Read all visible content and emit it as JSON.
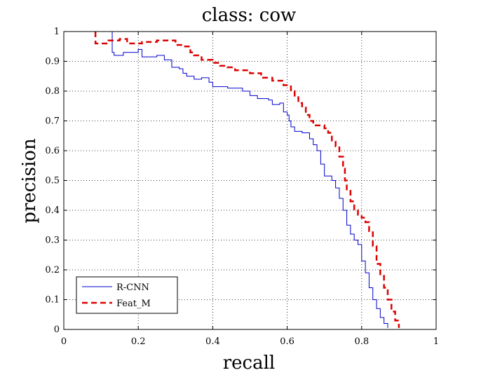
{
  "chart_data": {
    "type": "line",
    "title": "class: cow",
    "xlabel": "recall",
    "ylabel": "precision",
    "xlim": [
      0,
      1
    ],
    "ylim": [
      0,
      1
    ],
    "x_ticks": [
      0,
      0.2,
      0.4,
      0.6,
      0.8,
      1
    ],
    "y_ticks": [
      0,
      0.1,
      0.2,
      0.3,
      0.4,
      0.5,
      0.6,
      0.7,
      0.8,
      0.9,
      1
    ],
    "x_tick_labels": [
      "0",
      "0.2",
      "0.4",
      "0.6",
      "0.8",
      "1"
    ],
    "y_tick_labels": [
      "0",
      "0.1",
      "0.2",
      "0.3",
      "0.4",
      "0.5",
      "0.6",
      "0.7",
      "0.8",
      "0.9",
      "1"
    ],
    "grid": true,
    "legend_position": "bottom-left",
    "series": [
      {
        "name": "R-CNN",
        "color": "#0000cc",
        "style": "solid",
        "points": [
          [
            0.125,
            1.0
          ],
          [
            0.13,
            0.93
          ],
          [
            0.135,
            0.92
          ],
          [
            0.16,
            0.93
          ],
          [
            0.2,
            0.94
          ],
          [
            0.21,
            0.915
          ],
          [
            0.25,
            0.92
          ],
          [
            0.27,
            0.905
          ],
          [
            0.29,
            0.88
          ],
          [
            0.31,
            0.875
          ],
          [
            0.32,
            0.86
          ],
          [
            0.33,
            0.85
          ],
          [
            0.35,
            0.84
          ],
          [
            0.37,
            0.845
          ],
          [
            0.39,
            0.83
          ],
          [
            0.4,
            0.815
          ],
          [
            0.42,
            0.815
          ],
          [
            0.44,
            0.81
          ],
          [
            0.47,
            0.81
          ],
          [
            0.48,
            0.8
          ],
          [
            0.5,
            0.785
          ],
          [
            0.52,
            0.775
          ],
          [
            0.55,
            0.77
          ],
          [
            0.56,
            0.755
          ],
          [
            0.58,
            0.76
          ],
          [
            0.59,
            0.73
          ],
          [
            0.6,
            0.72
          ],
          [
            0.605,
            0.7
          ],
          [
            0.61,
            0.68
          ],
          [
            0.62,
            0.665
          ],
          [
            0.64,
            0.66
          ],
          [
            0.66,
            0.64
          ],
          [
            0.67,
            0.62
          ],
          [
            0.68,
            0.6
          ],
          [
            0.69,
            0.555
          ],
          [
            0.7,
            0.515
          ],
          [
            0.72,
            0.5
          ],
          [
            0.73,
            0.475
          ],
          [
            0.74,
            0.44
          ],
          [
            0.75,
            0.4
          ],
          [
            0.76,
            0.35
          ],
          [
            0.77,
            0.32
          ],
          [
            0.78,
            0.3
          ],
          [
            0.79,
            0.285
          ],
          [
            0.8,
            0.23
          ],
          [
            0.81,
            0.19
          ],
          [
            0.82,
            0.14
          ],
          [
            0.83,
            0.1
          ],
          [
            0.84,
            0.07
          ],
          [
            0.85,
            0.04
          ],
          [
            0.86,
            0.02
          ],
          [
            0.87,
            0.005
          ]
        ]
      },
      {
        "name": "Feat_M",
        "color": "#dd0000",
        "style": "dashed",
        "points": [
          [
            0.085,
            1.0
          ],
          [
            0.085,
            0.96
          ],
          [
            0.12,
            0.97
          ],
          [
            0.15,
            0.975
          ],
          [
            0.17,
            0.96
          ],
          [
            0.21,
            0.965
          ],
          [
            0.25,
            0.97
          ],
          [
            0.28,
            0.97
          ],
          [
            0.3,
            0.955
          ],
          [
            0.32,
            0.95
          ],
          [
            0.34,
            0.93
          ],
          [
            0.35,
            0.92
          ],
          [
            0.37,
            0.905
          ],
          [
            0.4,
            0.895
          ],
          [
            0.42,
            0.885
          ],
          [
            0.44,
            0.88
          ],
          [
            0.46,
            0.87
          ],
          [
            0.5,
            0.86
          ],
          [
            0.53,
            0.845
          ],
          [
            0.56,
            0.835
          ],
          [
            0.59,
            0.82
          ],
          [
            0.61,
            0.8
          ],
          [
            0.62,
            0.785
          ],
          [
            0.63,
            0.76
          ],
          [
            0.64,
            0.745
          ],
          [
            0.65,
            0.72
          ],
          [
            0.66,
            0.7
          ],
          [
            0.67,
            0.685
          ],
          [
            0.7,
            0.675
          ],
          [
            0.71,
            0.66
          ],
          [
            0.72,
            0.63
          ],
          [
            0.73,
            0.615
          ],
          [
            0.74,
            0.58
          ],
          [
            0.75,
            0.54
          ],
          [
            0.755,
            0.5
          ],
          [
            0.76,
            0.47
          ],
          [
            0.77,
            0.43
          ],
          [
            0.78,
            0.4
          ],
          [
            0.79,
            0.385
          ],
          [
            0.8,
            0.375
          ],
          [
            0.81,
            0.36
          ],
          [
            0.82,
            0.33
          ],
          [
            0.83,
            0.28
          ],
          [
            0.84,
            0.22
          ],
          [
            0.85,
            0.18
          ],
          [
            0.86,
            0.14
          ],
          [
            0.87,
            0.1
          ],
          [
            0.88,
            0.06
          ],
          [
            0.89,
            0.03
          ],
          [
            0.9,
            0.005
          ]
        ]
      }
    ]
  }
}
